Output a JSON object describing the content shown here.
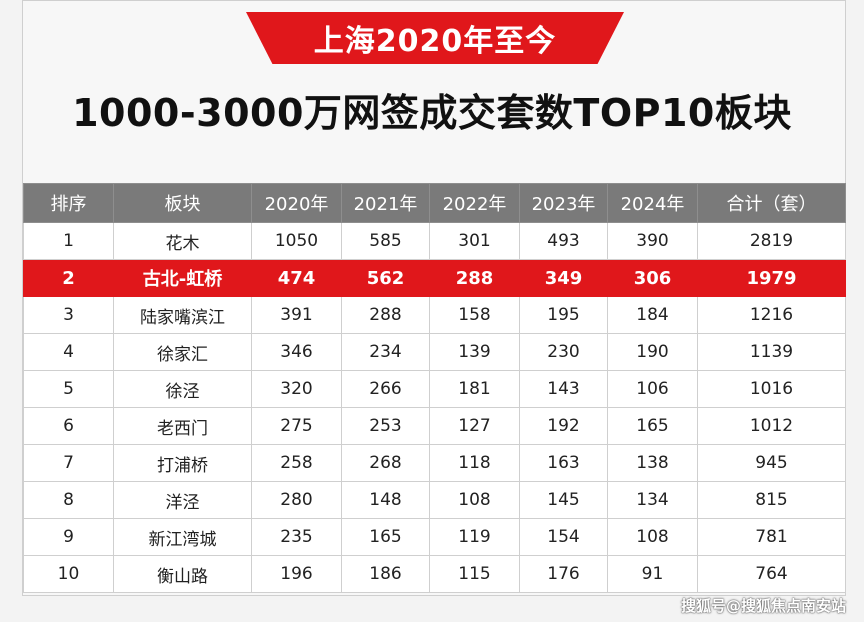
{
  "banner": "上海2020年至今",
  "title": "1000-3000万网签成交套数TOP10板块",
  "table": {
    "headers": [
      "排序",
      "板块",
      "2020年",
      "2021年",
      "2022年",
      "2023年",
      "2024年",
      "合计（套）"
    ],
    "rows": [
      [
        "1",
        "花木",
        "1050",
        "585",
        "301",
        "493",
        "390",
        "2819"
      ],
      [
        "2",
        "古北-虹桥",
        "474",
        "562",
        "288",
        "349",
        "306",
        "1979"
      ],
      [
        "3",
        "陆家嘴滨江",
        "391",
        "288",
        "158",
        "195",
        "184",
        "1216"
      ],
      [
        "4",
        "徐家汇",
        "346",
        "234",
        "139",
        "230",
        "190",
        "1139"
      ],
      [
        "5",
        "徐泾",
        "320",
        "266",
        "181",
        "143",
        "106",
        "1016"
      ],
      [
        "6",
        "老西门",
        "275",
        "253",
        "127",
        "192",
        "165",
        "1012"
      ],
      [
        "7",
        "打浦桥",
        "258",
        "268",
        "118",
        "163",
        "138",
        "945"
      ],
      [
        "8",
        "洋泾",
        "280",
        "148",
        "108",
        "145",
        "134",
        "815"
      ],
      [
        "9",
        "新江湾城",
        "235",
        "165",
        "119",
        "154",
        "108",
        "781"
      ],
      [
        "10",
        "衡山路",
        "196",
        "186",
        "115",
        "176",
        "91",
        "764"
      ]
    ],
    "highlight_row": 1
  },
  "watermark": "搜狐号@搜狐焦点南安站",
  "colors": {
    "accent_red": "#e0171b",
    "header_gray": "#7a7a7a"
  }
}
